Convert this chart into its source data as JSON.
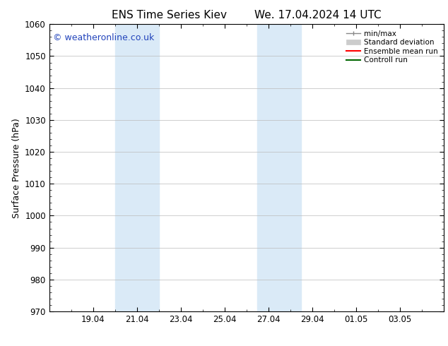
{
  "title_left": "ENS Time Series Kiev",
  "title_right": "We. 17.04.2024 14 UTC",
  "ylabel": "Surface Pressure (hPa)",
  "ylim": [
    970,
    1060
  ],
  "yticks": [
    970,
    980,
    990,
    1000,
    1010,
    1020,
    1030,
    1040,
    1050,
    1060
  ],
  "xlim": [
    0,
    18
  ],
  "xtick_labels": [
    "19.04",
    "21.04",
    "23.04",
    "25.04",
    "27.04",
    "29.04",
    "01.05",
    "03.05"
  ],
  "xtick_positions": [
    2,
    4,
    6,
    8,
    10,
    12,
    14,
    16
  ],
  "shaded_bands": [
    {
      "x_start": 3.0,
      "x_end": 4.0,
      "color": "#daeaf7"
    },
    {
      "x_start": 4.0,
      "x_end": 5.0,
      "color": "#daeaf7"
    },
    {
      "x_start": 9.5,
      "x_end": 10.5,
      "color": "#daeaf7"
    },
    {
      "x_start": 10.5,
      "x_end": 11.5,
      "color": "#daeaf7"
    }
  ],
  "watermark": "© weatheronline.co.uk",
  "watermark_color": "#2244bb",
  "background_color": "#ffffff",
  "grid_color": "#bbbbbb",
  "tick_label_fontsize": 8.5,
  "axis_label_fontsize": 9,
  "title_fontsize": 11
}
